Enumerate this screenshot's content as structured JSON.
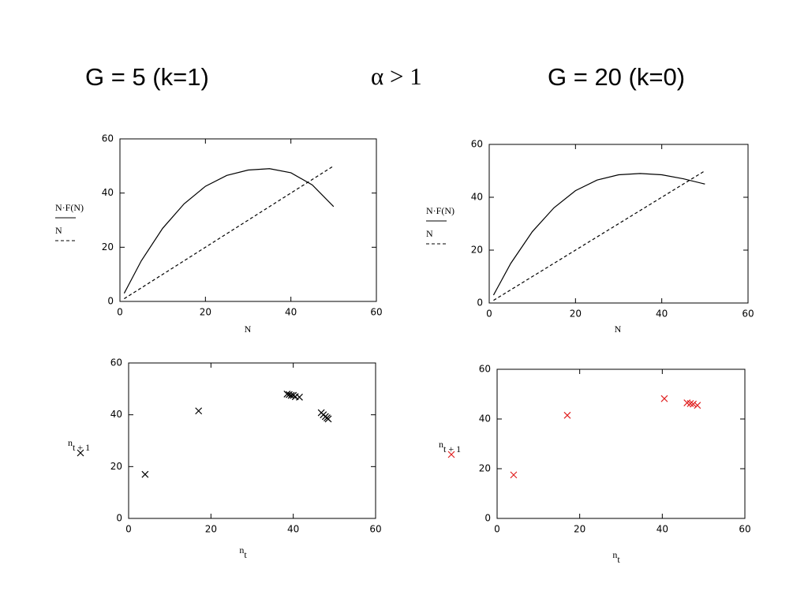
{
  "slide_titles": [
    "G = 5  (k=1)",
    "α > 1",
    "G = 20 (k=0)"
  ],
  "chart_data": [
    {
      "type": "line",
      "xlabel": "N",
      "xlim": [
        0,
        60
      ],
      "ylim": [
        0,
        60
      ],
      "xticks": [
        0,
        20,
        40,
        60
      ],
      "yticks": [
        0,
        20,
        40,
        60
      ],
      "series": [
        {
          "name": "N·F(N)",
          "color": "#000000",
          "style": "solid",
          "x": [
            1,
            2,
            5,
            10,
            15,
            20,
            25,
            30,
            35,
            40,
            45,
            50
          ],
          "values": [
            3,
            6,
            15,
            27,
            36,
            42.5,
            46.5,
            48.5,
            49,
            47.5,
            43,
            35
          ]
        },
        {
          "name": "N",
          "color": "#000000",
          "style": "dashed",
          "x": [
            1,
            50
          ],
          "values": [
            1,
            50
          ]
        }
      ]
    },
    {
      "type": "line",
      "xlabel": "N",
      "xlim": [
        0,
        60
      ],
      "ylim": [
        0,
        60
      ],
      "xticks": [
        0,
        20,
        40,
        60
      ],
      "yticks": [
        0,
        20,
        40,
        60
      ],
      "series": [
        {
          "name": "N·F(N)",
          "color": "#000000",
          "style": "solid",
          "x": [
            1,
            2,
            5,
            10,
            15,
            20,
            25,
            30,
            35,
            40,
            45,
            50
          ],
          "values": [
            3,
            6,
            15,
            27,
            36,
            42.5,
            46.5,
            48.5,
            49,
            48.5,
            47,
            45
          ]
        },
        {
          "name": "N",
          "color": "#000000",
          "style": "dashed",
          "x": [
            1,
            50
          ],
          "values": [
            1,
            50
          ]
        }
      ]
    },
    {
      "type": "scatter",
      "xlabel": "n",
      "xlabel_subscript": "t",
      "xlim": [
        0,
        60
      ],
      "ylim": [
        0,
        60
      ],
      "xticks": [
        0,
        20,
        40,
        60
      ],
      "yticks": [
        0,
        20,
        40,
        60
      ],
      "series": [
        {
          "name": "n",
          "name_subscript": "t + 1",
          "color": "#000000",
          "x": [
            4,
            17,
            38.5,
            39,
            39.5,
            40,
            40.5,
            41.5,
            46.8,
            47.3,
            47.8,
            48.2,
            48.5
          ],
          "values": [
            17,
            41.5,
            48,
            47.8,
            47.5,
            47.5,
            47,
            46.8,
            40.8,
            40,
            39.3,
            38.8,
            38.4
          ]
        }
      ]
    },
    {
      "type": "scatter",
      "xlabel": "n",
      "xlabel_subscript": "t",
      "xlim": [
        0,
        60
      ],
      "ylim": [
        0,
        60
      ],
      "xticks": [
        0,
        20,
        40,
        60
      ],
      "yticks": [
        0,
        20,
        40,
        60
      ],
      "series": [
        {
          "name": "n",
          "name_subscript": "t + 1",
          "color": "#e02020",
          "x": [
            4,
            17,
            40.5,
            46,
            46.8,
            47.5,
            48.5
          ],
          "values": [
            17.5,
            41.5,
            48.2,
            46.5,
            46.2,
            46,
            45.5
          ]
        }
      ]
    }
  ]
}
